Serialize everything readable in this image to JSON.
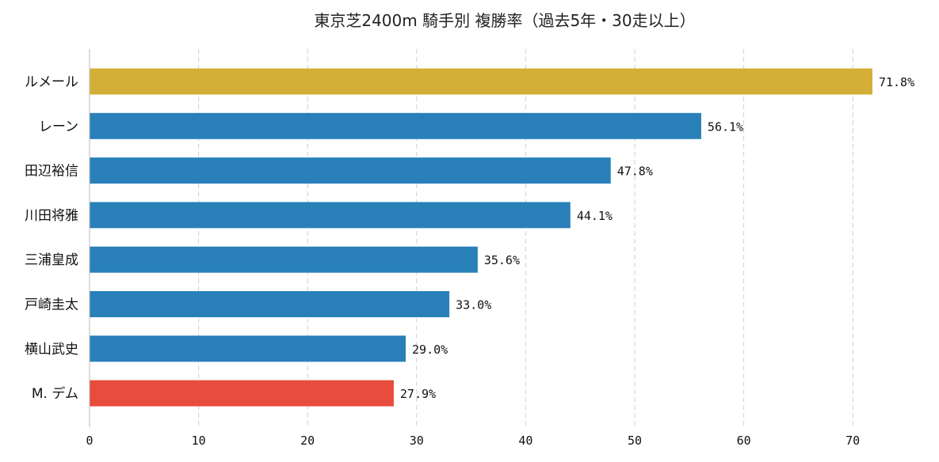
{
  "chart_data": {
    "type": "bar",
    "orientation": "horizontal",
    "title": "東京芝2400m 騎手別 複勝率（過去5年・30走以上）",
    "xlabel": "",
    "ylabel": "",
    "categories": [
      "ルメール",
      "レーン",
      "田辺裕信",
      "川田将雅",
      "三浦皇成",
      "戸崎圭太",
      "横山武史",
      "M. デム"
    ],
    "values": [
      71.8,
      56.1,
      47.8,
      44.1,
      35.6,
      33.0,
      29.0,
      27.9
    ],
    "value_labels": [
      "71.8%",
      "56.1%",
      "47.8%",
      "44.1%",
      "35.6%",
      "33.0%",
      "29.0%",
      "27.9%"
    ],
    "bar_colors": [
      "#d4af37",
      "#2980b9",
      "#2980b9",
      "#2980b9",
      "#2980b9",
      "#2980b9",
      "#2980b9",
      "#e74c3c"
    ],
    "xlim": [
      0,
      75
    ],
    "xticks": [
      0,
      10,
      20,
      30,
      40,
      50,
      60,
      70
    ],
    "xtick_labels": [
      "0",
      "10",
      "20",
      "30",
      "40",
      "50",
      "60",
      "70"
    ],
    "grid": "vertical dashed",
    "legend": "none"
  }
}
